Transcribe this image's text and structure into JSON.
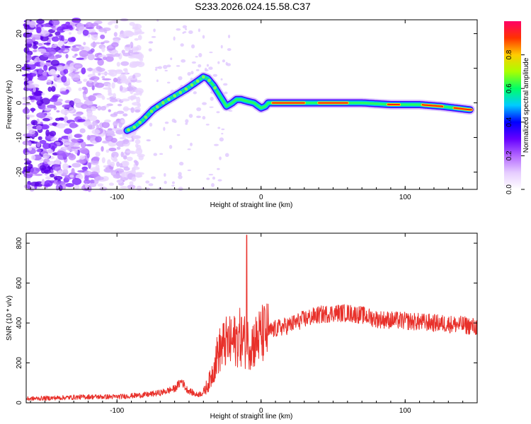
{
  "title": "S233.2026.024.15.58.C37",
  "chart_data": [
    {
      "type": "heatmap",
      "xlabel": "Height of straight line (km)",
      "ylabel": "Frequency (Hz)",
      "xlim": [
        -163,
        150
      ],
      "ylim": [
        -25,
        24
      ],
      "x_ticks": [
        -100,
        0,
        100
      ],
      "y_ticks": [
        -20,
        -10,
        0,
        10,
        20
      ],
      "colorbar": {
        "label": "Normalized spectral amplitude",
        "range": [
          0,
          1
        ],
        "ticks": [
          0.0,
          0.2,
          0.4,
          0.6,
          0.8
        ],
        "tick_labels": [
          "0.0",
          "0.2",
          "0.4",
          "0.6",
          "0.8"
        ],
        "colors": [
          "#ffffff",
          "#e6ccff",
          "#b366ff",
          "#6600ff",
          "#0000ff",
          "#00ccff",
          "#00ff66",
          "#aaff00",
          "#ffcc00",
          "#ff3300",
          "#ff0066"
        ]
      },
      "ridge": {
        "x": [
          -93,
          -88,
          -82,
          -75,
          -68,
          -60,
          -52,
          -45,
          -40,
          -37,
          -33,
          -30,
          -27,
          -24,
          -20,
          -17,
          -14,
          -10,
          -5,
          0,
          3,
          5,
          8,
          15,
          30,
          50,
          70,
          90,
          110,
          125,
          135,
          145
        ],
        "y": [
          -8,
          -7,
          -5,
          -2,
          0,
          2,
          4,
          6,
          7.5,
          7,
          5,
          3,
          1,
          -1,
          0,
          1,
          1,
          0.5,
          0,
          -1.5,
          -1,
          0,
          0,
          0,
          0,
          0,
          0,
          -0.5,
          -0.5,
          -1,
          -1.5,
          -2
        ]
      }
    },
    {
      "type": "line",
      "xlabel": "Height of straight line (km)",
      "ylabel": "SNR (10 * v/v)",
      "xlim": [
        -163,
        150
      ],
      "ylim": [
        0,
        850
      ],
      "x_ticks": [
        -100,
        0,
        100
      ],
      "y_ticks": [
        0,
        200,
        400,
        600,
        800
      ],
      "color": "#e8302a",
      "envelope": {
        "x": [
          -163,
          -140,
          -120,
          -100,
          -80,
          -70,
          -60,
          -55,
          -52,
          -45,
          -40,
          -35,
          -30,
          -25,
          -20,
          -15,
          -10,
          -5,
          0,
          10,
          20,
          30,
          40,
          50,
          60,
          70,
          80,
          100,
          120,
          140,
          150
        ],
        "y": [
          20,
          25,
          30,
          30,
          40,
          50,
          70,
          110,
          70,
          40,
          50,
          120,
          250,
          300,
          300,
          330,
          300,
          300,
          340,
          370,
          390,
          420,
          440,
          450,
          450,
          440,
          420,
          410,
          400,
          390,
          380
        ]
      },
      "spike": {
        "x": -10,
        "y": 840
      }
    }
  ]
}
